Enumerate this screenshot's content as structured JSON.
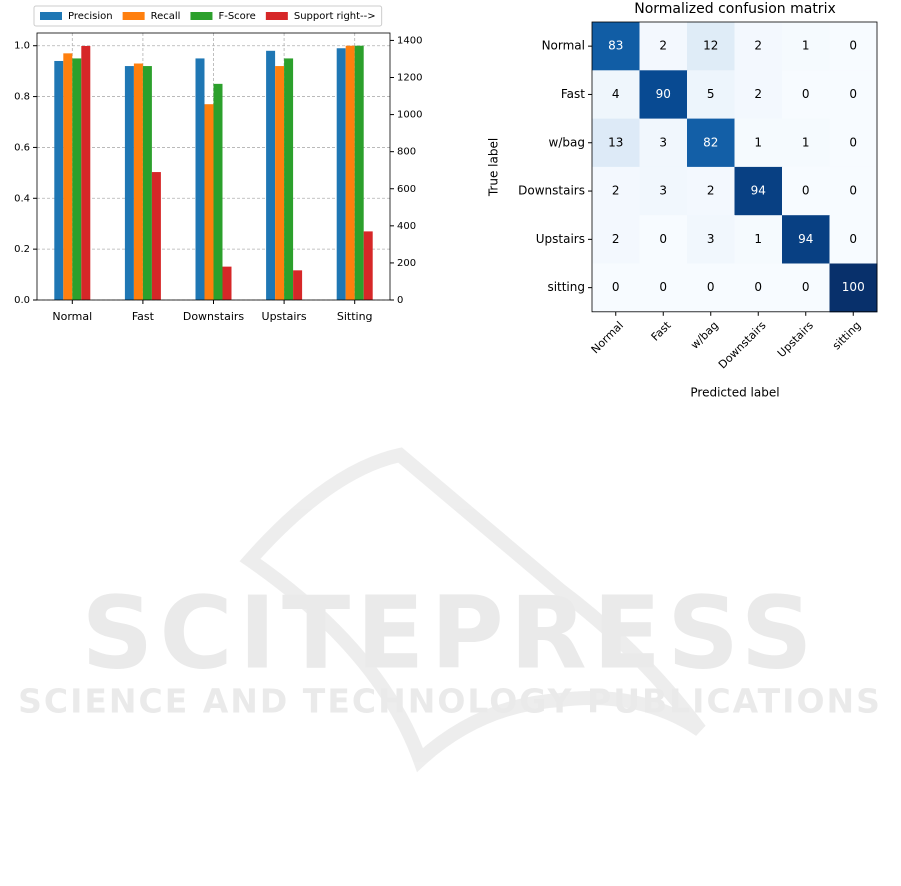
{
  "chart_data": [
    {
      "type": "bar",
      "categories": [
        "Normal",
        "Fast",
        "Downstairs",
        "Upstairs",
        "Sitting"
      ],
      "series": [
        {
          "name": "Precision",
          "color": "#1f77b4",
          "values": [
            0.94,
            0.92,
            0.95,
            0.98,
            0.99
          ]
        },
        {
          "name": "Recall",
          "color": "#ff7f0e",
          "values": [
            0.97,
            0.93,
            0.77,
            0.92,
            1.0
          ]
        },
        {
          "name": "F-Score",
          "color": "#2ca02c",
          "values": [
            0.95,
            0.92,
            0.85,
            0.95,
            1.0
          ]
        },
        {
          "name": "Support right-->",
          "color": "#d62728",
          "axis": "y2",
          "values": [
            1370,
            690,
            180,
            160,
            370
          ]
        }
      ],
      "ylim": [
        0,
        1.05
      ],
      "yticks": [
        {
          "value": 0,
          "label": "0.0"
        },
        {
          "value": 0.2,
          "label": "0.2"
        },
        {
          "value": 0.4,
          "label": "0.4"
        },
        {
          "value": 0.6,
          "label": "0.6"
        },
        {
          "value": 0.8,
          "label": "0.8"
        },
        {
          "value": 1,
          "label": "1.0"
        }
      ],
      "y2lim": [
        0,
        1440
      ],
      "y2ticks": [
        0,
        200,
        400,
        600,
        800,
        1000,
        1200,
        1400
      ],
      "grid": true,
      "legend": "top"
    },
    {
      "type": "heatmap",
      "title": "Normalized confusion matrix",
      "x_label": "Predicted label",
      "y_label": "True label",
      "x_categories": [
        "Normal",
        "Fast",
        "w/bag",
        "Downstairs",
        "Upstairs",
        "sitting"
      ],
      "y_categories": [
        "Normal",
        "Fast",
        "w/bag",
        "Downstairs",
        "Upstairs",
        "sitting"
      ],
      "colormap": "Blues",
      "values": [
        [
          83,
          2,
          12,
          2,
          1,
          0
        ],
        [
          4,
          90,
          5,
          2,
          0,
          0
        ],
        [
          13,
          3,
          82,
          1,
          1,
          0
        ],
        [
          2,
          3,
          2,
          94,
          0,
          0
        ],
        [
          2,
          0,
          3,
          1,
          94,
          0
        ],
        [
          0,
          0,
          0,
          0,
          0,
          100
        ]
      ]
    }
  ],
  "watermark": {
    "title": "SCITEPRESS",
    "subtitle": "SCIENCE AND TECHNOLOGY PUBLICATIONS"
  }
}
